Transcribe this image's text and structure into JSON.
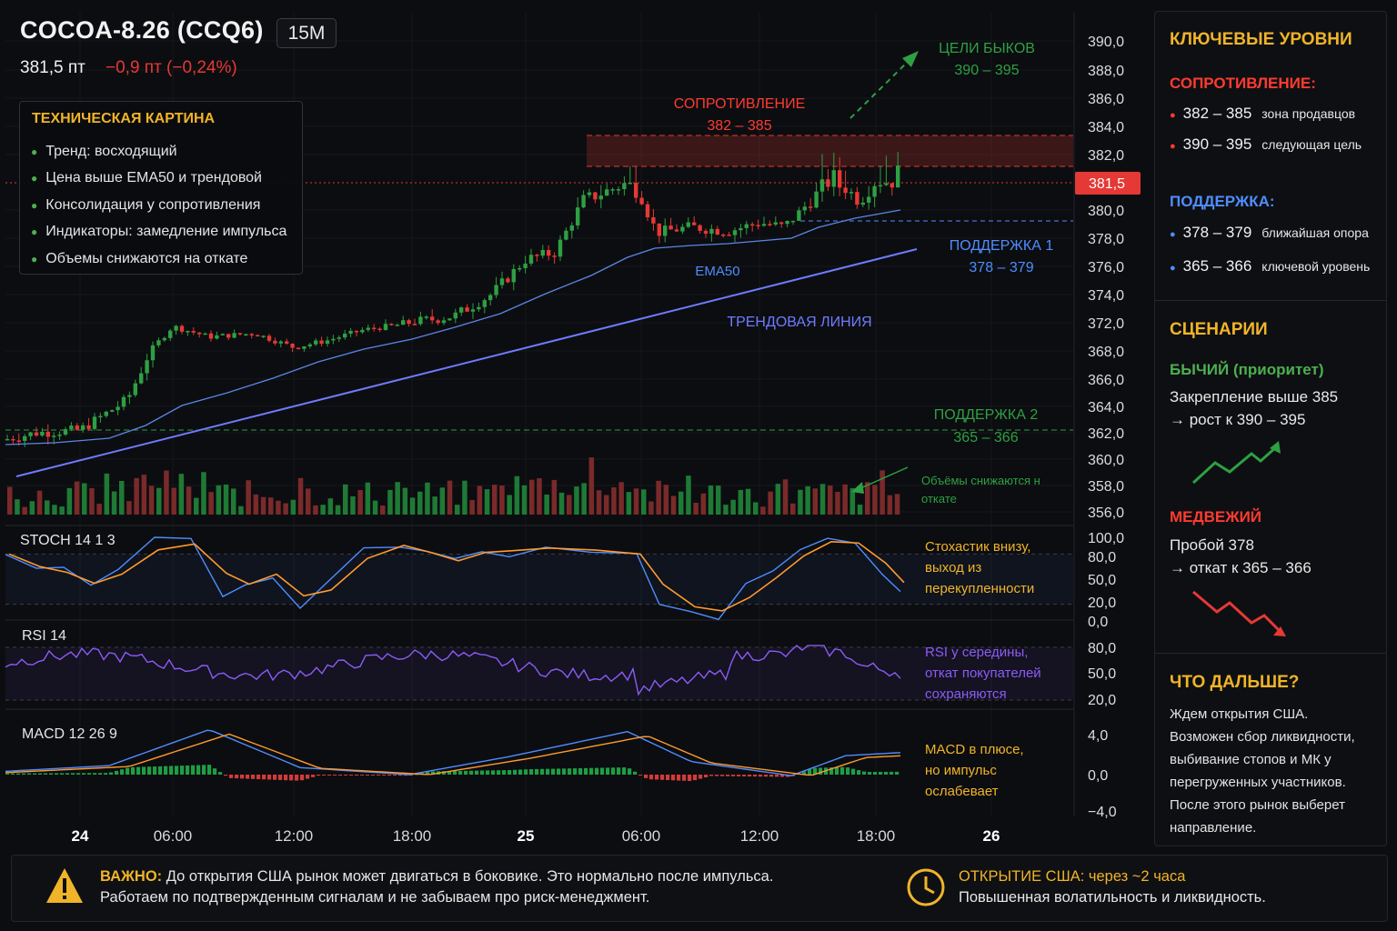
{
  "header": {
    "title": "COCOA-8.26 (CCQ6)",
    "timeframe": "15M",
    "price": "381,5 пт",
    "change": "−0,9 пт (−0,24%)"
  },
  "colors": {
    "up": "#2ea043",
    "down": "#e53935",
    "accent": "#f0b429",
    "support": "#4f8dff",
    "resistance": "#ff3b30",
    "bull": "#4caf50",
    "rsi": "#8b5cf6",
    "stoch_k": "#4f8dff",
    "stoch_d": "#ff9a2e"
  },
  "tech_box": {
    "title": "ТЕХНИЧЕСКАЯ КАРТИНА",
    "items": [
      "Тренд: восходящий",
      "Цена выше EMA50 и трендовой",
      "Консолидация у сопротивления",
      "Индикаторы: замедление импульса",
      "Объемы снижаются на откате"
    ]
  },
  "chart_data": {
    "type": "candlestick",
    "y_ticks": [
      "390,0",
      "388,0",
      "386,0",
      "384,0",
      "382,0",
      "380,0",
      "378,0",
      "376,0",
      "374,0",
      "372,0",
      "368,0",
      "366,0",
      "364,0",
      "362,0",
      "360,0",
      "358,0",
      "356,0"
    ],
    "x_ticks": [
      "24",
      "06:00",
      "12:00",
      "18:00",
      "25",
      "06:00",
      "12:00",
      "18:00",
      "26"
    ],
    "last_price_label": "381,5",
    "key_points": [
      {
        "time": "24 00:00",
        "close": 362.0
      },
      {
        "time": "24 06:00",
        "close": 371.5
      },
      {
        "time": "24 12:00",
        "close": 370.0
      },
      {
        "time": "24 18:00",
        "close": 372.0
      },
      {
        "time": "25 02:00",
        "close": 377.0
      },
      {
        "time": "25 04:30",
        "close": 382.0
      },
      {
        "time": "25 06:00",
        "close": 379.5
      },
      {
        "time": "25 12:00",
        "close": 378.8
      },
      {
        "time": "25 16:00",
        "close": 381.5
      },
      {
        "time": "25 19:00",
        "close": 381.5
      }
    ],
    "levels": {
      "resistance": {
        "label": "СОПРОТИВЛЕНИЕ",
        "range": "382 – 385"
      },
      "bull_targets": {
        "label": "ЦЕЛИ БЫКОВ",
        "range": "390 – 395"
      },
      "support1": {
        "label": "ПОДДЕРЖКА 1",
        "range": "378 – 379"
      },
      "support2": {
        "label": "ПОДДЕРЖКА 2",
        "range": "365 – 366"
      },
      "ema_label": "EMA50",
      "trend_label": "ТРЕНДОВАЯ ЛИНИЯ"
    },
    "volume_note": "Объёмы снижаются на откате",
    "indicators": {
      "stoch": {
        "label": "STOCH 14 1 3",
        "ticks": [
          "100,0",
          "80,0",
          "50,0",
          "20,0",
          "0,0"
        ],
        "note": "Стохастик внизу, выход из перекупленности"
      },
      "rsi": {
        "label": "RSI 14",
        "ticks": [
          "80,0",
          "50,0",
          "20,0"
        ],
        "note": "RSI у середины, откат покупателей сохраняются"
      },
      "macd": {
        "label": "MACD 12 26 9",
        "ticks": [
          "4,0",
          "0,0",
          "−4,0"
        ],
        "note": "MACD в плюсе, но импульс ослабевает"
      }
    }
  },
  "levels_panel": {
    "title": "КЛЮЧЕВЫЕ УРОВНИ",
    "resistance_title": "СОПРОТИВЛЕНИЕ:",
    "resistance": [
      {
        "value": "382 – 385",
        "desc": "зона продавцов"
      },
      {
        "value": "390 – 395",
        "desc": "следующая цель"
      }
    ],
    "support_title": "ПОДДЕРЖКА:",
    "support": [
      {
        "value": "378 – 379",
        "desc": "ближайшая опора"
      },
      {
        "value": "365 – 366",
        "desc": "ключевой уровень"
      }
    ]
  },
  "scenarios": {
    "title": "СЦЕНАРИИ",
    "bull_title": "БЫЧИЙ (приоритет)",
    "bull_line1": "Закрепление выше 385",
    "bull_line2": "→ рост к 390 – 395",
    "bear_title": "МЕДВЕЖИЙ",
    "bear_line1": "Пробой 378",
    "bear_line2": "→ откат к 365 – 366"
  },
  "next": {
    "title": "ЧТО ДАЛЬШЕ?",
    "lines": [
      "Ждем открытия США.",
      "Возможен сбор ликвидности,",
      "выбивание стопов и МК у",
      "перегруженных участников.",
      "После этого рынок выберет",
      "направление."
    ]
  },
  "footer": {
    "warn_label": "ВАЖНО:",
    "warn_text1": " До открытия США рынок может двигаться в боковике. Это нормально после импульса.",
    "warn_text2": "Работаем по подтвержденным сигналам и не забываем про риск-менеджмент.",
    "open_label": "ОТКРЫТИЕ США:",
    "open_value": " через ~2 часа",
    "open_text2": "Повышенная волатильность и ликвидность."
  }
}
